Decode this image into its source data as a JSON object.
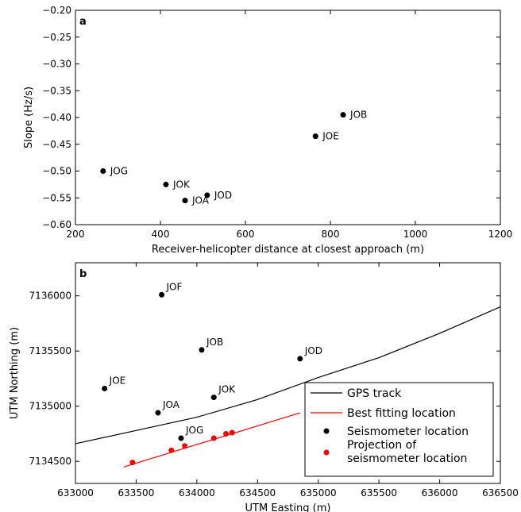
{
  "chart_data": [
    {
      "type": "scatter",
      "panel_label": "a",
      "xlabel": "Receiver-helicopter distance at closest approach (m)",
      "ylabel": "Slope (Hz/s)",
      "xlim": [
        200,
        1200
      ],
      "ylim": [
        -0.6,
        -0.2
      ],
      "xticks": [
        200,
        400,
        600,
        800,
        1000,
        1200
      ],
      "yticks": [
        -0.6,
        -0.55,
        -0.5,
        -0.45,
        -0.4,
        -0.35,
        -0.3,
        -0.25,
        -0.2
      ],
      "xtick_labels": [
        "200",
        "400",
        "600",
        "800",
        "1000",
        "1200"
      ],
      "ytick_labels": [
        "−0.60",
        "−0.55",
        "−0.50",
        "−0.45",
        "−0.40",
        "−0.35",
        "−0.30",
        "−0.25",
        "−0.20"
      ],
      "marker_color": "#000000",
      "points": [
        {
          "label": "JOB",
          "x": 830,
          "y": -0.395
        },
        {
          "label": "JOE",
          "x": 765,
          "y": -0.435
        },
        {
          "label": "JOG",
          "x": 265,
          "y": -0.5
        },
        {
          "label": "JOK",
          "x": 413,
          "y": -0.525
        },
        {
          "label": "JOD",
          "x": 510,
          "y": -0.545
        },
        {
          "label": "JOA",
          "x": 458,
          "y": -0.555
        }
      ]
    },
    {
      "type": "scatter",
      "panel_label": "b",
      "xlabel": "UTM Easting (m)",
      "ylabel": "UTM Northing (m)",
      "xlim": [
        633000,
        636500
      ],
      "ylim": [
        7134300,
        7136300
      ],
      "xticks": [
        633000,
        633500,
        634000,
        634500,
        635000,
        635500,
        636000,
        636500
      ],
      "yticks": [
        7134500,
        7135000,
        7135500,
        7136000
      ],
      "xtick_labels": [
        "633000",
        "633500",
        "634000",
        "634500",
        "635000",
        "635500",
        "636000",
        "636500"
      ],
      "ytick_labels": [
        "7134500",
        "7135000",
        "7135500",
        "7136000"
      ],
      "legend_position": "bottom-right",
      "series": [
        {
          "name": "GPS track",
          "kind": "line",
          "color": "#000000",
          "x": [
            633000,
            633500,
            634000,
            634500,
            635000,
            635500,
            636000,
            636500
          ],
          "y": [
            7134660,
            7134780,
            7134900,
            7135060,
            7135260,
            7135440,
            7135660,
            7135900
          ]
        },
        {
          "name": "Best fitting location",
          "kind": "line",
          "color": "#ff0000",
          "x": [
            633400,
            634850
          ],
          "y": [
            7134450,
            7134940
          ]
        },
        {
          "name": "Seismometer location",
          "kind": "points",
          "color": "#000000",
          "points": [
            {
              "label": "JOF",
              "x": 633710,
              "y": 7136010
            },
            {
              "label": "JOB",
              "x": 634040,
              "y": 7135510
            },
            {
              "label": "JOD",
              "x": 634850,
              "y": 7135430
            },
            {
              "label": "JOE",
              "x": 633240,
              "y": 7135160
            },
            {
              "label": "JOK",
              "x": 634140,
              "y": 7135080
            },
            {
              "label": "JOA",
              "x": 633680,
              "y": 7134940
            },
            {
              "label": "JOG",
              "x": 633870,
              "y": 7134710
            }
          ]
        },
        {
          "name": "Projection of seismometer location",
          "kind": "points",
          "color": "#ff0000",
          "points": [
            {
              "x": 633470,
              "y": 7134490
            },
            {
              "x": 633790,
              "y": 7134600
            },
            {
              "x": 633900,
              "y": 7134640
            },
            {
              "x": 634140,
              "y": 7134710
            },
            {
              "x": 634240,
              "y": 7134750
            },
            {
              "x": 634290,
              "y": 7134760
            }
          ]
        }
      ]
    }
  ]
}
